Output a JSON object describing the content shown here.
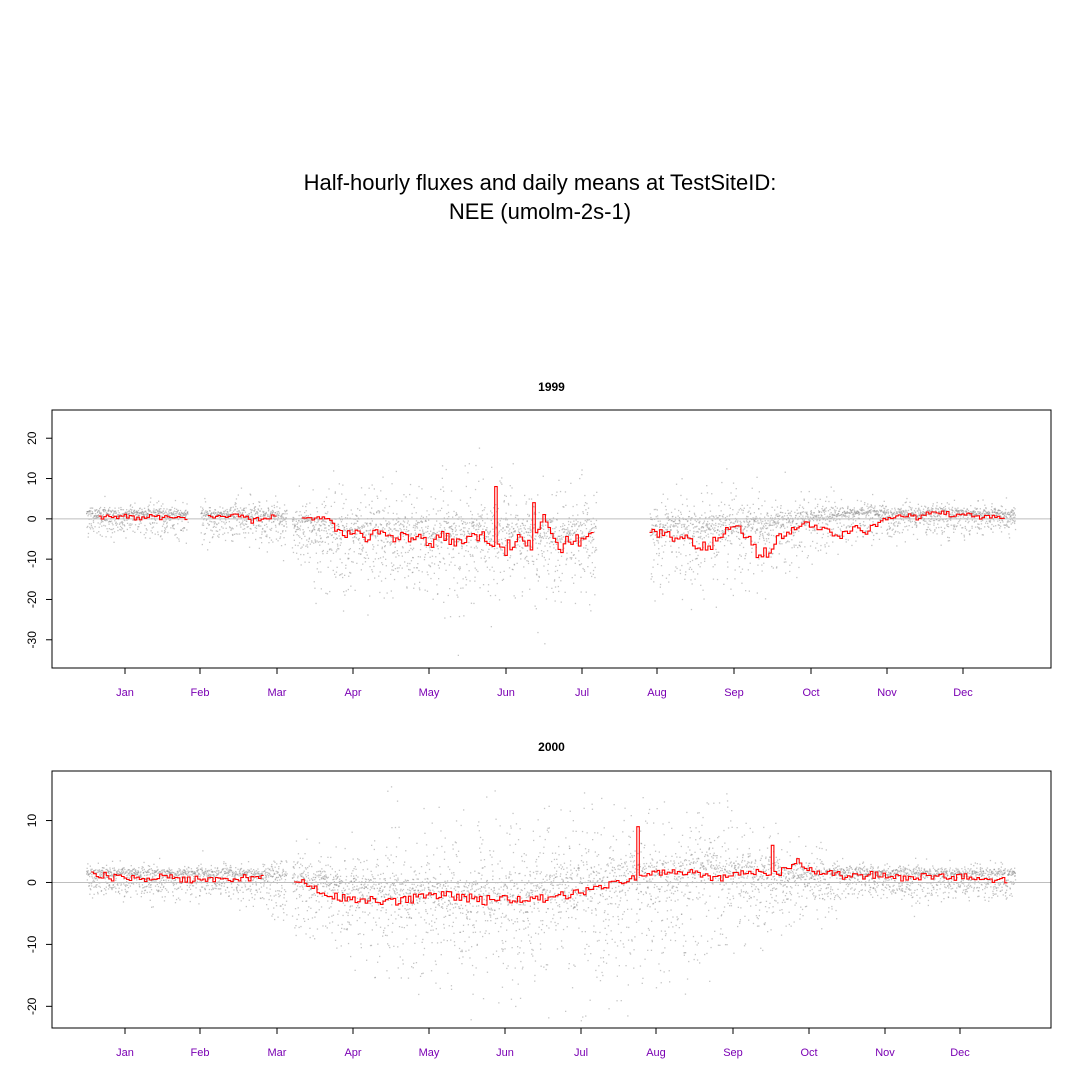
{
  "title": {
    "line1": "Half-hourly fluxes and daily means at TestSiteID:",
    "line2": "NEE (umolm-2s-1)"
  },
  "colors": {
    "points": "#8c8c8c",
    "daily_mean": "#ff0000",
    "zero_line": "#bebebe",
    "month_label": "#7a00b3"
  },
  "chart_data": [
    {
      "type": "scatter",
      "title": "1999",
      "xlabel": "",
      "ylabel": "",
      "months": [
        "Jan",
        "Feb",
        "Mar",
        "Apr",
        "May",
        "Jun",
        "Jul",
        "Aug",
        "Sep",
        "Oct",
        "Nov",
        "Dec"
      ],
      "yticks": [
        20,
        10,
        0,
        -10,
        -20,
        -30
      ],
      "ylim": [
        -37,
        27
      ],
      "grid": false,
      "zero_line": true,
      "series": [
        {
          "role": "half-hourly",
          "gaps": [
            [
              40,
              45
            ],
            [
              79,
              81
            ],
            [
              201,
              222
            ]
          ],
          "profile": [
            {
              "day": 0,
              "center": 0.5,
              "spread": 4
            },
            {
              "day": 75,
              "center": 0,
              "spread": 6
            },
            {
              "day": 90,
              "center": -3,
              "spread": 14
            },
            {
              "day": 150,
              "center": -4,
              "spread": 18
            },
            {
              "day": 200,
              "center": -4,
              "spread": 16
            },
            {
              "day": 270,
              "center": -2,
              "spread": 13
            },
            {
              "day": 300,
              "center": 0.5,
              "spread": 6
            },
            {
              "day": 365,
              "center": 0.5,
              "spread": 4
            }
          ]
        },
        {
          "role": "daily-mean",
          "days": [
            5,
            10,
            15,
            20,
            25,
            30,
            35,
            40,
            48,
            55,
            60,
            65,
            70,
            75,
            80,
            85,
            90,
            95,
            100,
            105,
            110,
            115,
            120,
            125,
            130,
            135,
            140,
            145,
            150,
            155,
            160,
            165,
            170,
            175,
            180,
            185,
            190,
            195,
            200,
            222,
            227,
            232,
            237,
            242,
            247,
            252,
            257,
            262,
            267,
            272,
            277,
            282,
            287,
            292,
            297,
            302,
            307,
            312,
            317,
            322,
            327,
            332,
            337,
            342,
            347,
            352,
            357,
            362
          ],
          "values": [
            0.3,
            0.5,
            0.8,
            0.2,
            0.5,
            0.2,
            0.6,
            0.3,
            0.8,
            0.5,
            1.0,
            -0.5,
            0.5,
            0.5,
            0.5,
            0.2,
            0.3,
            0.1,
            -4,
            -3,
            -5,
            -3,
            -5,
            -4,
            -5,
            -6,
            -4,
            -6,
            -5,
            -4,
            -6,
            -7,
            -5,
            -6,
            0.5,
            -8,
            -5,
            -6,
            -4,
            -3,
            -4,
            -5,
            -4,
            -8,
            -6,
            -3,
            -2,
            -7,
            -8,
            -5,
            -3,
            -1,
            -2,
            -3,
            -4,
            -2,
            -3,
            -1,
            0.5,
            1,
            0.3,
            1.5,
            1.8,
            0.5,
            0.8,
            0.3,
            0.5,
            0.3
          ],
          "peaks": [
            {
              "day": 161,
              "value": 8
            },
            {
              "day": 176,
              "value": 4
            }
          ]
        }
      ]
    },
    {
      "type": "scatter",
      "title": "2000",
      "xlabel": "",
      "ylabel": "",
      "months": [
        "Jan",
        "Feb",
        "Mar",
        "Apr",
        "May",
        "Jun",
        "Jul",
        "Aug",
        "Sep",
        "Oct",
        "Nov",
        "Dec"
      ],
      "yticks": [
        10,
        0,
        -10,
        -20
      ],
      "ylim": [
        -23.5,
        18
      ],
      "grid": false,
      "zero_line": true,
      "series": [
        {
          "role": "half-hourly",
          "gaps": [
            [
              79,
              81
            ]
          ],
          "profile": [
            {
              "day": 0,
              "center": 0.5,
              "spread": 3
            },
            {
              "day": 60,
              "center": 0.5,
              "spread": 3
            },
            {
              "day": 80,
              "center": 0,
              "spread": 7
            },
            {
              "day": 110,
              "center": -2,
              "spread": 12
            },
            {
              "day": 160,
              "center": -3,
              "spread": 16
            },
            {
              "day": 210,
              "center": 0,
              "spread": 17
            },
            {
              "day": 250,
              "center": 1,
              "spread": 13
            },
            {
              "day": 280,
              "center": 0.5,
              "spread": 7
            },
            {
              "day": 300,
              "center": 0.5,
              "spread": 4
            },
            {
              "day": 366,
              "center": 0.5,
              "spread": 3
            }
          ]
        },
        {
          "role": "daily-mean",
          "days": [
            2,
            10,
            20,
            30,
            40,
            50,
            60,
            70,
            82,
            90,
            100,
            110,
            120,
            130,
            140,
            150,
            160,
            170,
            180,
            190,
            200,
            210,
            220,
            230,
            240,
            250,
            260,
            270,
            280,
            290,
            300,
            310,
            320,
            330,
            340,
            350,
            358,
            363
          ],
          "values": [
            1.5,
            0.8,
            0.5,
            0.8,
            0.5,
            0.6,
            0.7,
            0.8,
            0.5,
            -1,
            -2.5,
            -3,
            -3,
            -2.5,
            -2,
            -2.5,
            -3,
            -3,
            -2.5,
            -2,
            -1,
            0,
            1,
            2,
            1.5,
            0.5,
            2,
            1,
            3,
            1.5,
            1,
            1.2,
            0.8,
            0.9,
            0.8,
            0.9,
            0.5,
            0.3
          ],
          "peaks": [
            {
              "day": 217,
              "value": 9
            },
            {
              "day": 270,
              "value": 6
            }
          ]
        }
      ]
    }
  ]
}
